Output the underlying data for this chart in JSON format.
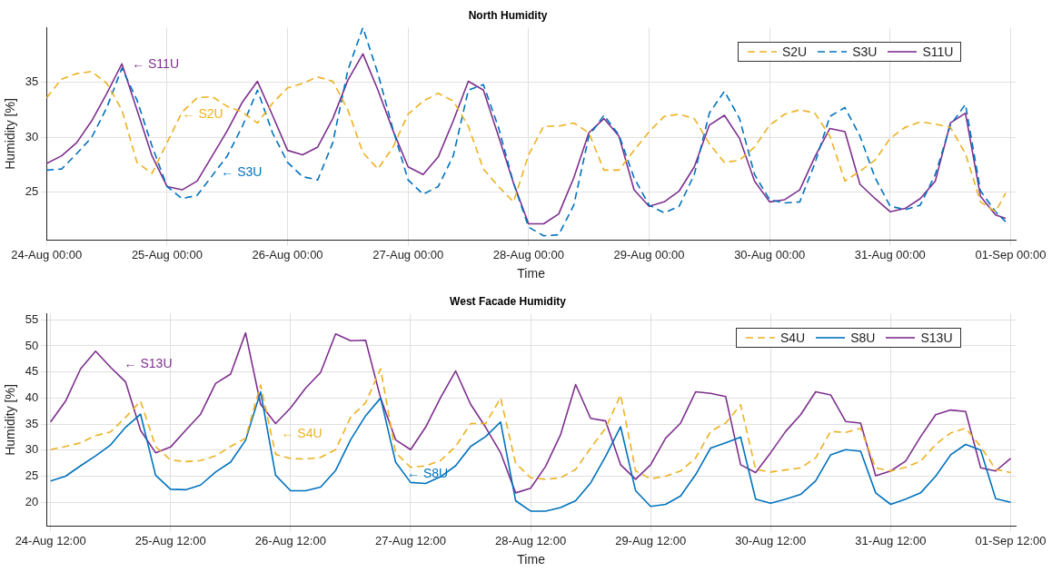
{
  "chart_data": [
    {
      "type": "line",
      "title": "North Humidity",
      "xlabel": "Time",
      "ylabel": "Humidity [%]",
      "x": [
        "--08-24T00:00",
        "--08-24T03:00",
        "--08-24T06:00",
        "--08-24T09:00",
        "--08-24T12:00",
        "--08-24T15:00",
        "--08-24T18:00",
        "--08-24T21:00",
        "--08-25T00:00",
        "--08-25T03:00",
        "--08-25T06:00",
        "--08-25T09:00",
        "--08-25T12:00",
        "--08-25T15:00",
        "--08-25T18:00",
        "--08-25T21:00",
        "--08-26T00:00",
        "--08-26T03:00",
        "--08-26T06:00",
        "--08-26T09:00",
        "--08-26T12:00",
        "--08-26T15:00",
        "--08-26T18:00",
        "--08-26T21:00",
        "--08-27T00:00",
        "--08-27T03:00",
        "--08-27T06:00",
        "--08-27T09:00",
        "--08-27T12:00",
        "--08-27T15:00",
        "--08-27T18:00",
        "--08-27T21:00",
        "--08-28T00:00",
        "--08-28T03:00",
        "--08-28T06:00",
        "--08-28T09:00",
        "--08-28T12:00",
        "--08-28T15:00",
        "--08-28T18:00",
        "--08-28T21:00",
        "--08-29T00:00",
        "--08-29T03:00",
        "--08-29T06:00",
        "--08-29T09:00",
        "--08-29T12:00",
        "--08-29T15:00",
        "--08-29T18:00",
        "--08-29T21:00",
        "--08-30T00:00",
        "--08-30T03:00",
        "--08-30T06:00",
        "--08-30T09:00",
        "--08-30T12:00",
        "--08-30T15:00",
        "--08-30T18:00",
        "--08-30T21:00",
        "--08-31T00:00",
        "--08-31T03:00",
        "--08-31T06:00",
        "--08-31T09:00",
        "--08-31T12:00",
        "--08-31T15:00",
        "--08-31T18:00",
        "--08-31T21:00",
        "--08-31T23:00"
      ],
      "series": [
        {
          "name": "S2U",
          "color": "#edb120",
          "line_style": "dashed",
          "values": [
            33.6,
            35.3,
            35.8,
            36.0,
            34.9,
            32.5,
            27.7,
            26.7,
            29.5,
            32.3,
            33.6,
            33.7,
            32.8,
            32.3,
            31.3,
            33.1,
            34.5,
            34.9,
            35.5,
            35.1,
            32.5,
            28.6,
            27.1,
            29.1,
            32.1,
            33.3,
            34.0,
            33.3,
            31.0,
            27.1,
            25.5,
            24.1,
            28.4,
            31.0,
            31.0,
            31.3,
            30.4,
            27.0,
            27.0,
            28.8,
            30.5,
            31.9,
            32.1,
            31.7,
            29.4,
            27.7,
            27.9,
            29.1,
            31.1,
            32.1,
            32.5,
            32.2,
            30.1,
            26.0,
            26.9,
            27.9,
            29.9,
            30.9,
            31.4,
            31.2,
            30.9,
            28.5,
            24.1,
            23.2,
            24.9
          ]
        },
        {
          "name": "S3U",
          "color": "#0072bd",
          "line_style": "dashed",
          "values": [
            27.0,
            27.1,
            28.5,
            30.0,
            32.7,
            36.3,
            33.4,
            29.2,
            25.5,
            24.4,
            24.7,
            26.5,
            28.3,
            31.0,
            34.3,
            30.4,
            27.7,
            26.4,
            26.1,
            29.5,
            36.1,
            40.0,
            35.8,
            30.7,
            26.1,
            24.8,
            25.5,
            28.3,
            34.3,
            34.8,
            30.9,
            25.8,
            21.8,
            21.0,
            21.1,
            23.8,
            30.1,
            32.0,
            30.2,
            26.3,
            23.8,
            23.1,
            23.7,
            26.6,
            32.2,
            34.2,
            31.7,
            26.6,
            24.3,
            24.0,
            24.1,
            27.6,
            31.9,
            32.7,
            30.1,
            26.3,
            23.7,
            23.4,
            23.8,
            26.6,
            31.1,
            33.0,
            25.1,
            23.2,
            22.3
          ]
        },
        {
          "name": "S11U",
          "color": "#7e2f8e",
          "line_style": "solid",
          "values": [
            27.6,
            28.3,
            29.5,
            31.5,
            34.0,
            36.7,
            32.5,
            28.3,
            25.5,
            25.2,
            26.0,
            28.3,
            30.6,
            33.2,
            35.1,
            32.0,
            28.8,
            28.4,
            29.1,
            31.7,
            35.2,
            37.6,
            34.3,
            30.6,
            27.3,
            26.6,
            28.2,
            31.5,
            35.1,
            34.3,
            30.1,
            25.8,
            22.1,
            22.1,
            23.0,
            26.3,
            30.4,
            31.7,
            30.1,
            25.2,
            23.7,
            24.1,
            25.1,
            27.3,
            31.1,
            32.0,
            29.9,
            26.0,
            24.1,
            24.3,
            25.2,
            28.2,
            30.8,
            30.5,
            25.7,
            24.4,
            23.2,
            23.5,
            24.4,
            26.0,
            31.3,
            32.2,
            24.6,
            22.9,
            22.6
          ]
        }
      ],
      "xlim": [
        "--08-24T00:00",
        "--09-01T01:00"
      ],
      "ylim": [
        20.6,
        40
      ],
      "xticks": [
        {
          "value": "--08-24T00:00",
          "label": "24-Aug 00:00"
        },
        {
          "value": "--08-25T00:00",
          "label": "25-Aug 00:00"
        },
        {
          "value": "--08-26T00:00",
          "label": "26-Aug 00:00"
        },
        {
          "value": "--08-27T00:00",
          "label": "27-Aug 00:00"
        },
        {
          "value": "--08-28T00:00",
          "label": "28-Aug 00:00"
        },
        {
          "value": "--08-29T00:00",
          "label": "29-Aug 00:00"
        },
        {
          "value": "--08-30T00:00",
          "label": "30-Aug 00:00"
        },
        {
          "value": "--08-31T00:00",
          "label": "31-Aug 00:00"
        },
        {
          "value": "--09-01T00:00",
          "label": "01-Sep 00:00"
        }
      ],
      "yticks": [
        25,
        30,
        35
      ],
      "annotations": [
        "← S2U",
        "← S3U",
        "← S11U"
      ],
      "grid": true,
      "legend": "top right"
    },
    {
      "type": "line",
      "title": "West Facade Humidity",
      "xlabel": "Time",
      "ylabel": "Humidity [%]",
      "x": [
        "--08-24T12:00",
        "--08-24T15:00",
        "--08-24T18:00",
        "--08-24T21:00",
        "--08-25T00:00",
        "--08-25T03:00",
        "--08-25T06:00",
        "--08-25T09:00",
        "--08-25T12:00",
        "--08-25T15:00",
        "--08-25T18:00",
        "--08-25T21:00",
        "--08-26T00:00",
        "--08-26T03:00",
        "--08-26T06:00",
        "--08-26T09:00",
        "--08-26T12:00",
        "--08-26T15:00",
        "--08-26T18:00",
        "--08-26T21:00",
        "--08-27T00:00",
        "--08-27T03:00",
        "--08-27T06:00",
        "--08-27T09:00",
        "--08-27T12:00",
        "--08-27T15:00",
        "--08-27T18:00",
        "--08-27T21:00",
        "--08-28T00:00",
        "--08-28T03:00",
        "--08-28T06:00",
        "--08-28T09:00",
        "--08-28T12:00",
        "--08-28T15:00",
        "--08-28T18:00",
        "--08-28T21:00",
        "--08-29T00:00",
        "--08-29T03:00",
        "--08-29T06:00",
        "--08-29T09:00",
        "--08-29T12:00",
        "--08-29T15:00",
        "--08-29T18:00",
        "--08-29T21:00",
        "--08-30T00:00",
        "--08-30T03:00",
        "--08-30T06:00",
        "--08-30T09:00",
        "--08-30T12:00",
        "--08-30T15:00",
        "--08-30T18:00",
        "--08-30T21:00",
        "--08-31T00:00",
        "--08-31T03:00",
        "--08-31T06:00",
        "--08-31T09:00",
        "--08-31T12:00",
        "--08-31T15:00",
        "--08-31T18:00",
        "--08-31T21:00",
        "--09-01T00:00",
        "--09-01T03:00",
        "--09-01T06:00",
        "--09-01T09:00",
        "--09-01T12:00"
      ],
      "series": [
        {
          "name": "S4U",
          "color": "#edb120",
          "line_style": "dashed",
          "values": [
            30.1,
            30.7,
            31.4,
            32.8,
            33.5,
            36.3,
            39.4,
            30.7,
            28.1,
            27.8,
            28.0,
            28.9,
            30.7,
            32.3,
            42.5,
            29.2,
            28.4,
            28.3,
            28.6,
            30.1,
            36.3,
            39.1,
            45.6,
            29.5,
            26.7,
            27.0,
            28.0,
            30.7,
            35.1,
            35.1,
            40.0,
            27.5,
            24.7,
            24.4,
            24.7,
            26.3,
            30.4,
            34.2,
            40.6,
            26.0,
            24.5,
            25.0,
            26.0,
            28.5,
            33.6,
            35.2,
            38.7,
            26.3,
            25.8,
            26.2,
            26.6,
            28.5,
            33.6,
            33.4,
            34.2,
            26.6,
            26.0,
            26.7,
            27.9,
            31.1,
            33.3,
            34.2,
            30.7,
            26.3,
            25.7
          ]
        },
        {
          "name": "S8U",
          "color": "#0072bd",
          "line_style": "solid",
          "values": [
            24.1,
            25.0,
            27.0,
            28.9,
            31.0,
            34.4,
            36.9,
            25.2,
            22.5,
            22.4,
            23.3,
            25.8,
            27.7,
            31.9,
            41.2,
            25.2,
            22.2,
            22.2,
            22.9,
            26.1,
            32.0,
            36.6,
            40.0,
            27.7,
            23.8,
            23.6,
            24.9,
            27.0,
            30.7,
            32.6,
            35.4,
            20.3,
            18.3,
            18.3,
            19.0,
            20.3,
            23.7,
            28.8,
            34.5,
            22.2,
            19.2,
            19.6,
            21.2,
            25.3,
            30.4,
            31.4,
            32.5,
            20.6,
            19.8,
            20.6,
            21.5,
            24.1,
            29.1,
            30.1,
            29.8,
            21.8,
            19.6,
            20.6,
            21.8,
            25.0,
            29.1,
            31.1,
            30.0,
            20.7,
            20.0
          ]
        },
        {
          "name": "S13U",
          "color": "#7e2f8e",
          "line_style": "solid",
          "values": [
            35.4,
            39.4,
            45.6,
            49.0,
            45.9,
            43.1,
            33.8,
            29.5,
            30.6,
            33.8,
            36.9,
            42.8,
            44.6,
            52.5,
            38.8,
            35.1,
            38.1,
            41.9,
            44.9,
            52.3,
            51.0,
            51.1,
            40.0,
            32.0,
            30.1,
            34.4,
            40.1,
            45.2,
            38.8,
            34.4,
            29.5,
            21.8,
            22.7,
            26.9,
            33.0,
            42.6,
            36.1,
            35.6,
            27.2,
            24.4,
            27.2,
            32.3,
            35.2,
            41.2,
            40.9,
            40.3,
            27.2,
            25.7,
            29.5,
            33.6,
            36.8,
            41.2,
            40.6,
            35.5,
            35.2,
            25.1,
            26.0,
            27.9,
            32.6,
            36.8,
            37.7,
            37.4,
            26.6,
            26.0,
            28.4
          ]
        }
      ],
      "xlim": [
        "--08-24T11:12",
        "--09-01T13:00"
      ],
      "ylim": [
        15.4,
        56.2
      ],
      "xticks": [
        {
          "value": "--08-24T12:00",
          "label": "24-Aug 12:00"
        },
        {
          "value": "--08-25T12:00",
          "label": "25-Aug 12:00"
        },
        {
          "value": "--08-26T12:00",
          "label": "26-Aug 12:00"
        },
        {
          "value": "--08-27T12:00",
          "label": "27-Aug 12:00"
        },
        {
          "value": "--08-28T12:00",
          "label": "28-Aug 12:00"
        },
        {
          "value": "--08-29T12:00",
          "label": "29-Aug 12:00"
        },
        {
          "value": "--08-30T12:00",
          "label": "30-Aug 12:00"
        },
        {
          "value": "--08-31T12:00",
          "label": "31-Aug 12:00"
        },
        {
          "value": "--09-01T12:00",
          "label": "01-Sep 12:00"
        }
      ],
      "yticks": [
        20,
        25,
        30,
        35,
        40,
        45,
        50,
        55
      ],
      "annotations": [
        "← S4U",
        "← S8U",
        "← S13U"
      ],
      "grid": true,
      "legend": "top right"
    }
  ]
}
